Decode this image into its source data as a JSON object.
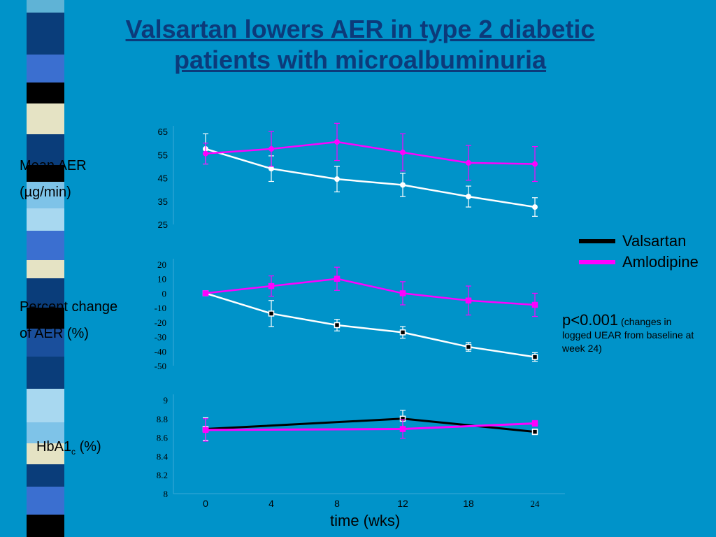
{
  "slide": {
    "title_line1": "Valsartan lowers AER in type 2 diabetic",
    "title_line2": "patients with microalbuminuria",
    "panel_labels": {
      "mean_aer_line1": "Mean AER",
      "mean_aer_line2": "(µg/min)",
      "percent_change_line1": "Percent change",
      "percent_change_line2": "of AER (%)",
      "hba1c_main": "HbA1",
      "hba1c_sub": "c",
      "hba1c_unit": " (%)"
    },
    "legend": {
      "items": [
        {
          "label": "Valsartan",
          "color": "#000000"
        },
        {
          "label": "Amlodipine",
          "color": "#ff00ff"
        }
      ]
    },
    "pvalue": {
      "main": "p<0.001",
      "note": "(changes in logged UEAR from baseline at week 24)"
    },
    "x_axis_title": "time (wks)"
  },
  "colors": {
    "background": "#0093c9",
    "title": "#0c3a7a",
    "valsartan_line_top": "#ffffff",
    "valsartan_line_hba1c": "#000000",
    "amlodipine": "#ff00ff"
  },
  "chart_data": [
    {
      "type": "line",
      "title": "",
      "ylabel": "Mean AER (µg/min)",
      "x": [
        0,
        4,
        8,
        12,
        18,
        24
      ],
      "ylim": [
        25,
        65
      ],
      "yticks": [
        65,
        55,
        45,
        35,
        25
      ],
      "series": [
        {
          "name": "Valsartan",
          "values": [
            57.5,
            49,
            44.5,
            42,
            37,
            32.5
          ],
          "error": [
            6.5,
            5.5,
            5.5,
            5,
            4.5,
            4
          ],
          "color": "#ffffff"
        },
        {
          "name": "Amlodipine",
          "values": [
            55.5,
            57.5,
            60.5,
            56,
            51.5,
            51
          ],
          "error": [
            4.5,
            7.5,
            8,
            8,
            7.5,
            7.5
          ],
          "color": "#ff00ff"
        }
      ]
    },
    {
      "type": "line",
      "title": "",
      "ylabel": "Percent change of AER (%)",
      "x": [
        0,
        4,
        8,
        12,
        18,
        24
      ],
      "ylim": [
        -50,
        20
      ],
      "yticks": [
        20,
        10,
        0,
        -10,
        -20,
        -30,
        -40,
        -50
      ],
      "series": [
        {
          "name": "Valsartan",
          "values": [
            0,
            -14,
            -22,
            -27,
            -37,
            -44
          ],
          "error": [
            0,
            9,
            4,
            4,
            3,
            3
          ],
          "color": "#ffffff"
        },
        {
          "name": "Amlodipine",
          "values": [
            0,
            5,
            10,
            0,
            -5,
            -8
          ],
          "error": [
            0,
            7,
            8,
            8,
            10,
            8
          ],
          "color": "#ff00ff"
        }
      ]
    },
    {
      "type": "line",
      "title": "",
      "ylabel": "HbA1c (%)",
      "xlabel": "time (wks)",
      "x": [
        0,
        4,
        8,
        12,
        18,
        24
      ],
      "xticks": [
        "0",
        "4",
        "8",
        "12",
        "18",
        "24"
      ],
      "ylim": [
        8,
        9
      ],
      "yticks": [
        "9",
        "8.8",
        "8.6",
        "8.4",
        "8.2",
        "8"
      ],
      "series": [
        {
          "name": "Valsartan",
          "x": [
            0,
            12,
            24
          ],
          "values": [
            8.69,
            8.8,
            8.66
          ],
          "error": [
            0.12,
            0.09,
            0.03
          ],
          "color": "#000000"
        },
        {
          "name": "Amlodipine",
          "x": [
            0,
            12,
            24
          ],
          "values": [
            8.68,
            8.69,
            8.75
          ],
          "error": [
            0.12,
            0.1,
            0.03
          ],
          "color": "#ff00ff"
        }
      ]
    }
  ]
}
